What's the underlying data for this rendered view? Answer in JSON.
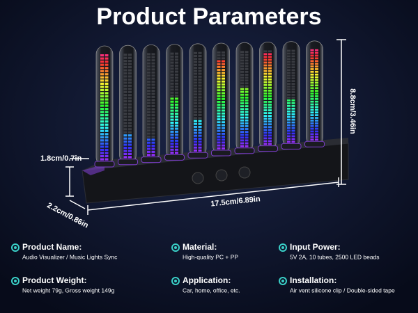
{
  "title": "Product Parameters",
  "dimensions": {
    "height": "8.8cm/3.46in",
    "base_height": "1.8cm/0.7in",
    "depth": "2.2cm/0.86in",
    "width": "17.5cm/6.89in"
  },
  "specs": [
    {
      "label": "Product Name:",
      "value": "Audio Visualizer / Music Lights Sync"
    },
    {
      "label": "Material:",
      "value": "High-quality PC + PP"
    },
    {
      "label": "Input Power:",
      "value": "5V 2A, 10 tubes, 2500 LED beads"
    },
    {
      "label": "Product Weight:",
      "value": "Net weight 79g, Gross weight 149g"
    },
    {
      "label": "Application:",
      "value": "Car, home, office, etc."
    },
    {
      "label": "Installation:",
      "value": "Air vent silicone clip / Double-sided tape"
    }
  ]
}
